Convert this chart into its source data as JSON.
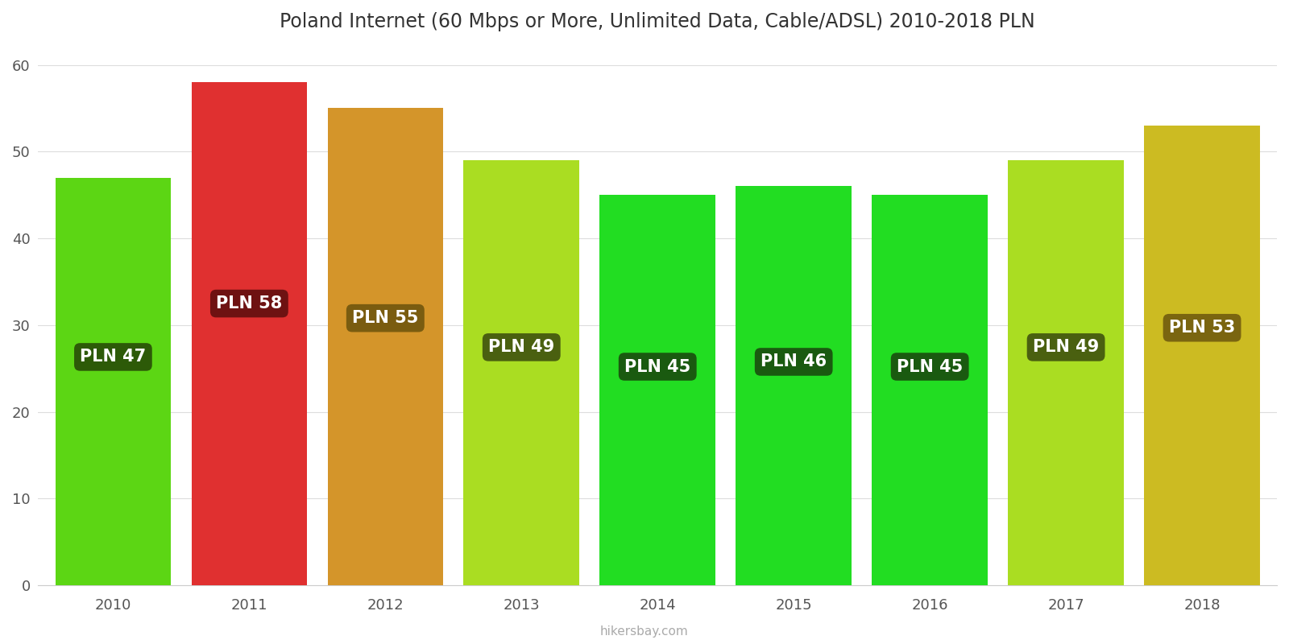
{
  "years": [
    2010,
    2011,
    2012,
    2013,
    2014,
    2015,
    2016,
    2017,
    2018
  ],
  "values": [
    47,
    58,
    55,
    49,
    45,
    46,
    45,
    49,
    53
  ],
  "bar_colors": [
    "#5cd614",
    "#e03030",
    "#d4952a",
    "#aadd22",
    "#22dd22",
    "#22dd22",
    "#22dd22",
    "#aadd22",
    "#ccbb22"
  ],
  "label_bg_colors": [
    "#2d5a08",
    "#6e1212",
    "#7a5c10",
    "#4a6010",
    "#1a5a10",
    "#1a5a10",
    "#1a5a10",
    "#4a6010",
    "#7a6510"
  ],
  "title": "Poland Internet (60 Mbps or More, Unlimited Data, Cable/ADSL) 2010-2018 PLN",
  "ylim": [
    0,
    62
  ],
  "yticks": [
    0,
    10,
    20,
    30,
    40,
    50,
    60
  ],
  "background_color": "#ffffff",
  "title_fontsize": 17,
  "label_fontsize": 15,
  "watermark": "hikersbay.com"
}
